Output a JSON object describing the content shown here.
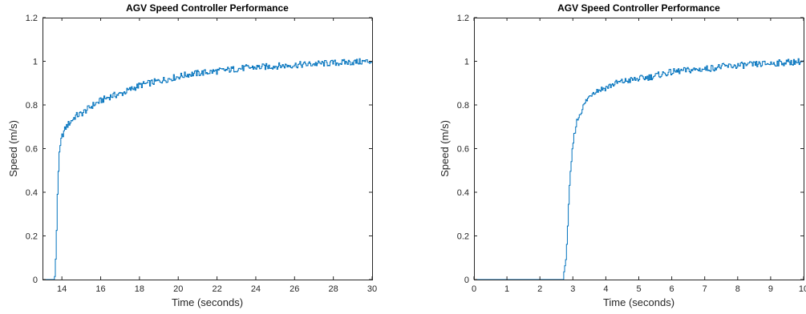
{
  "chart_data": [
    {
      "type": "line",
      "title": "AGV Speed Controller Performance",
      "xlabel": "Time (seconds)",
      "ylabel": "Speed (m/s)",
      "xlim": [
        13,
        30
      ],
      "ylim": [
        0,
        1.2
      ],
      "xticks": [
        "14",
        "16",
        "18",
        "20",
        "22",
        "24",
        "26",
        "28",
        "30"
      ],
      "yticks": [
        "0",
        "0.2",
        "0.4",
        "0.6",
        "0.8",
        "1",
        "1.2"
      ],
      "grid": false,
      "line_color": "#0072BD",
      "series": [
        {
          "step": true,
          "x": [
            13.0,
            13.5,
            13.6,
            13.65,
            13.7,
            13.75,
            13.8,
            13.85,
            13.9,
            13.95,
            14.0,
            14.1,
            14.2,
            14.3,
            14.5,
            14.7,
            15.0,
            15.3,
            15.6,
            16.0,
            16.5,
            17.0,
            17.5,
            18.0,
            18.5,
            19.0,
            19.5,
            20.0,
            20.5,
            21.0,
            21.5,
            22.0,
            22.5,
            23.0,
            23.5,
            24.0,
            24.5,
            25.0,
            25.5,
            26.0,
            26.5,
            27.0,
            27.5,
            28.0,
            28.5,
            29.0,
            29.5,
            30.0
          ],
          "y": [
            0.0,
            0.0,
            0.0,
            0.05,
            0.2,
            0.38,
            0.5,
            0.57,
            0.61,
            0.64,
            0.66,
            0.68,
            0.7,
            0.71,
            0.73,
            0.75,
            0.76,
            0.78,
            0.8,
            0.82,
            0.84,
            0.85,
            0.87,
            0.89,
            0.9,
            0.91,
            0.92,
            0.93,
            0.94,
            0.945,
            0.95,
            0.955,
            0.96,
            0.965,
            0.97,
            0.972,
            0.975,
            0.978,
            0.98,
            0.983,
            0.985,
            0.988,
            0.99,
            0.992,
            0.994,
            0.996,
            0.998,
            1.0
          ]
        }
      ]
    },
    {
      "type": "line",
      "title": "AGV Speed Controller Performance",
      "xlabel": "Time (seconds)",
      "ylabel": "Speed (m/s)",
      "xlim": [
        0,
        10
      ],
      "ylim": [
        0,
        1.2
      ],
      "xticks": [
        "0",
        "1",
        "2",
        "3",
        "4",
        "5",
        "6",
        "7",
        "8",
        "9",
        "10"
      ],
      "yticks": [
        "0",
        "0.2",
        "0.4",
        "0.6",
        "0.8",
        "1",
        "1.2"
      ],
      "grid": false,
      "line_color": "#0072BD",
      "series": [
        {
          "step": true,
          "x": [
            0.0,
            2.7,
            2.75,
            2.8,
            2.85,
            2.9,
            2.95,
            3.0,
            3.05,
            3.1,
            3.2,
            3.3,
            3.4,
            3.5,
            3.6,
            3.8,
            4.0,
            4.3,
            4.6,
            5.0,
            5.4,
            5.8,
            6.2,
            6.6,
            7.0,
            7.5,
            8.0,
            8.5,
            9.0,
            9.5,
            10.0
          ],
          "y": [
            0.0,
            0.0,
            0.05,
            0.15,
            0.3,
            0.45,
            0.55,
            0.63,
            0.68,
            0.72,
            0.76,
            0.79,
            0.82,
            0.84,
            0.86,
            0.87,
            0.88,
            0.9,
            0.91,
            0.92,
            0.93,
            0.945,
            0.955,
            0.96,
            0.965,
            0.975,
            0.98,
            0.985,
            0.99,
            0.995,
            1.0
          ]
        }
      ]
    }
  ]
}
